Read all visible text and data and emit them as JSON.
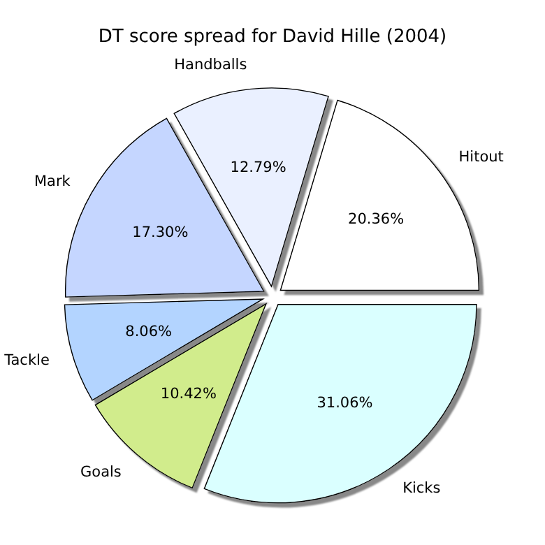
{
  "chart_data": {
    "type": "pie",
    "title": "DT score spread for David Hille (2004)",
    "categories": [
      "Hitout",
      "Handballs",
      "Mark",
      "Tackle",
      "Goals",
      "Kicks"
    ],
    "values": [
      20.36,
      12.79,
      17.3,
      8.06,
      10.42,
      31.06
    ],
    "value_labels": [
      "20.36%",
      "12.79%",
      "17.30%",
      "8.06%",
      "10.42%",
      "31.06%"
    ],
    "colors": [
      "#ffffff",
      "#eaf0ff",
      "#c5d6ff",
      "#b3d4ff",
      "#d1ec8c",
      "#daffff"
    ]
  }
}
